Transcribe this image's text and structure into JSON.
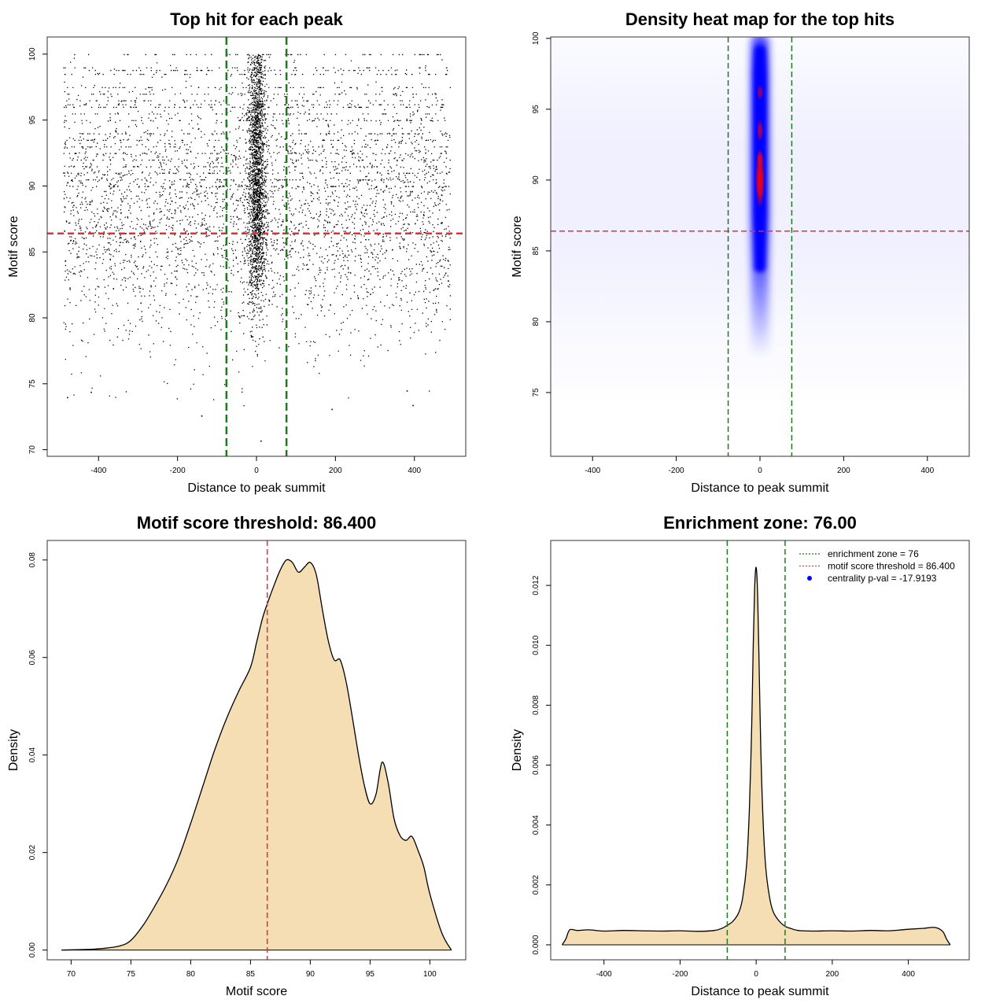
{
  "figure": {
    "panel_count": 4
  },
  "chart_data": [
    {
      "type": "scatter",
      "title": "Top hit for each peak",
      "xlabel": "Distance to peak summit",
      "ylabel": "Motif score",
      "xlim": [
        -530,
        530
      ],
      "ylim": [
        69.5,
        101.3
      ],
      "xticks": [
        -400,
        -200,
        0,
        200,
        400
      ],
      "yticks": [
        70,
        75,
        80,
        85,
        90,
        95,
        100
      ],
      "points_summary": "Dense black points; central column around 0 (about -25 to 25) densest between motif score 80 and 100; background points spread uniformly from -490 to 490 with scores 72 to 100.",
      "threshold_hline": 86.4,
      "threshold_color": "#e0303a",
      "zone_vlines": [
        -76,
        76
      ],
      "zone_color": "#1f7a1f"
    },
    {
      "type": "heatmap",
      "title": "Density heat map for the top hits",
      "xlabel": "Distance to peak summit",
      "ylabel": "Motif score",
      "xlim": [
        -500,
        500
      ],
      "ylim": [
        70.5,
        100.1
      ],
      "xticks": [
        -400,
        -200,
        0,
        200,
        400
      ],
      "yticks": [
        75,
        80,
        85,
        90,
        95,
        100
      ],
      "colormap": [
        "#ffffff",
        "#0000ff",
        "#ff0000"
      ],
      "peak_center_x": 0,
      "peak_center_y": 90,
      "threshold_hline": 86.4,
      "threshold_color": "#e0303a",
      "zone_vlines": [
        -76,
        76
      ],
      "zone_color": "#1f7a1f"
    },
    {
      "type": "area",
      "title": "Motif score threshold: 86.400",
      "xlabel": "Motif score",
      "ylabel": "Density",
      "xlim": [
        68,
        103
      ],
      "ylim": [
        -0.002,
        0.084
      ],
      "xticks": [
        70,
        75,
        80,
        85,
        90,
        95,
        100
      ],
      "yticks": [
        "0.00",
        "0.02",
        "0.04",
        "0.06",
        "0.08"
      ],
      "x": [
        69.2,
        72,
        74,
        75,
        76,
        77,
        78,
        79,
        80,
        81,
        82,
        83,
        84,
        85,
        85.5,
        86,
        86.4,
        87,
        87.5,
        88,
        88.5,
        89,
        89.5,
        90,
        90.5,
        91,
        91.5,
        92,
        92.5,
        93,
        93.5,
        94,
        94.5,
        95,
        95.5,
        96,
        96.5,
        97,
        97.5,
        98,
        98.5,
        99,
        99.5,
        100,
        101,
        101.8
      ],
      "y": [
        0,
        0.0002,
        0.0008,
        0.002,
        0.005,
        0.009,
        0.0135,
        0.019,
        0.026,
        0.0335,
        0.041,
        0.0475,
        0.053,
        0.058,
        0.063,
        0.068,
        0.071,
        0.075,
        0.078,
        0.08,
        0.0795,
        0.0775,
        0.0785,
        0.0795,
        0.077,
        0.07,
        0.0635,
        0.0595,
        0.0595,
        0.055,
        0.048,
        0.0405,
        0.034,
        0.03,
        0.032,
        0.0385,
        0.0345,
        0.027,
        0.0235,
        0.0225,
        0.0233,
        0.0205,
        0.017,
        0.0115,
        0.0035,
        0
      ],
      "fill": "#f5deb3",
      "threshold_vline": 86.4,
      "threshold_color": "#e0303a"
    },
    {
      "type": "area",
      "title": "Enrichment zone: 76.00",
      "xlabel": "Distance to peak summit",
      "ylabel": "Density",
      "xlim": [
        -540,
        560
      ],
      "ylim": [
        -0.0005,
        0.0135
      ],
      "xticks": [
        -400,
        -200,
        0,
        200,
        400
      ],
      "yticks": [
        "0.000",
        "0.002",
        "0.004",
        "0.006",
        "0.008",
        "0.010",
        "0.012"
      ],
      "x": [
        -510,
        -500,
        -490,
        -470,
        -440,
        -400,
        -350,
        -300,
        -250,
        -200,
        -150,
        -110,
        -90,
        -76,
        -60,
        -45,
        -35,
        -25,
        -18,
        -12,
        -8,
        -4,
        0,
        4,
        8,
        12,
        18,
        25,
        35,
        45,
        60,
        76,
        90,
        110,
        150,
        200,
        250,
        300,
        350,
        400,
        440,
        470,
        490,
        500,
        510
      ],
      "y": [
        0,
        0.0002,
        0.0005,
        0.00048,
        0.0005,
        0.00046,
        0.00048,
        0.00047,
        0.00046,
        0.00047,
        0.00045,
        0.00048,
        0.00055,
        0.00065,
        0.0008,
        0.0011,
        0.0016,
        0.0027,
        0.0045,
        0.0072,
        0.0098,
        0.0119,
        0.0126,
        0.0116,
        0.0092,
        0.0066,
        0.0042,
        0.0026,
        0.0016,
        0.0011,
        0.0008,
        0.00062,
        0.00055,
        0.00048,
        0.00046,
        0.00047,
        0.00046,
        0.00048,
        0.00047,
        0.00052,
        0.00055,
        0.00058,
        0.00045,
        0.0002,
        0
      ],
      "fill": "#f5deb3",
      "zone_vlines": [
        -76,
        76
      ],
      "zone_color": "#1f7a1f",
      "legend": [
        {
          "label": "enrichment zone = 76",
          "symbol": "dotted-line",
          "color": "#1f7a1f"
        },
        {
          "label": "motif score threshold = 86.400",
          "symbol": "dotted-line",
          "color": "#e0303a"
        },
        {
          "label": "centrality p-val = -17.9193",
          "symbol": "point",
          "color": "#0000ff"
        }
      ],
      "legend_position": "top-right"
    }
  ]
}
